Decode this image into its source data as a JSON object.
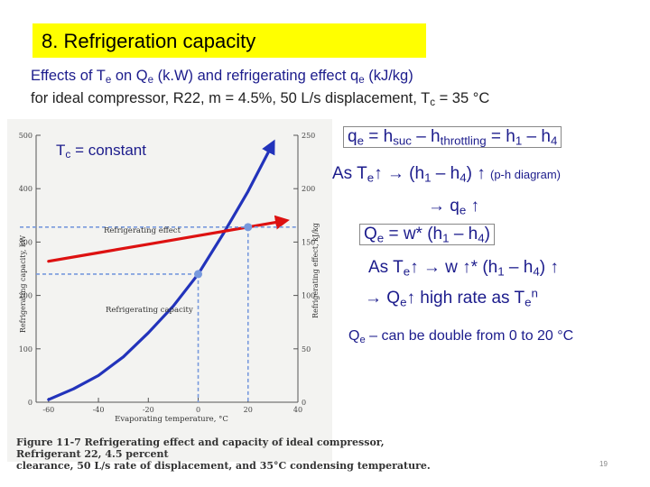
{
  "title": "8. Refrigeration capacity",
  "subtitle": {
    "line1": {
      "a": "Effects of T",
      "a_sub": "e",
      "b": " on Q",
      "b_sub": "e",
      "c": " (k.W) and refrigerating effect q",
      "c_sub": "e",
      "d": " (kJ/kg)"
    },
    "line2": {
      "a": "for ideal compressor, R22, m = 4.5%, 50 L/s displacement, T",
      "a_sub": "c",
      "b": " = 35 °C"
    }
  },
  "tc_label": {
    "text": "T",
    "sub": "c",
    "rest": " = constant"
  },
  "equations": {
    "eq1": {
      "qe": "q",
      "qe_sub": "e",
      "mid": " = h",
      "suc": "suc",
      "minus": " – h",
      "thr": "throttling",
      "tail": " = h",
      "one": "1",
      "tail2": " – h",
      "four": "4"
    },
    "eq2": {
      "as": "As T",
      "sub": "e",
      "up": "↑",
      "arrow": "  → (h",
      "one": "1",
      "mid": " – h",
      "four": "4",
      "close": ") ↑ ",
      "note": "(p-h diagram)"
    },
    "eq3": {
      "arrow": "→ q",
      "sub": "e",
      "up": " ↑"
    },
    "eq4": {
      "q": "Q",
      "sub": "e",
      "rest": " = w* (h",
      "one": "1",
      "mid": " – h",
      "four": "4",
      "close": ")"
    },
    "eq5": {
      "as": "As T",
      "sub": "e",
      "up": "↑",
      "rest": "  → w ↑* (h",
      "one": "1",
      "mid": " – h",
      "four": "4",
      "close": ") ↑"
    },
    "eq6": {
      "arrow": "→ Q",
      "sub": "e",
      "rest": "↑  high rate as T",
      "sub2": "e",
      "sup": "n"
    },
    "eq7": {
      "q": "Q",
      "sub": "e",
      "rest": " – can be double from 0 to 20 °C"
    }
  },
  "figure_caption": {
    "line1": "Figure 11-7  Refrigerating effect and capacity of ideal compressor, Refrigerant 22, 4.5 percent",
    "line2": "clearance, 50 L/s rate of displacement, and 35°C condensing temperature."
  },
  "page_number": "19",
  "colors": {
    "capacity_curve": "#2233bb",
    "effect_line": "#dd1111",
    "marker": "#7799dd",
    "title_bg": "#ffff00",
    "text_blue": "#1c1c8c"
  },
  "chart_data": {
    "type": "line",
    "xlabel": "Evaporating temperature, °C",
    "ylabel_left": "Refrigerating capacity, kW",
    "ylabel_right": "Refrigerating effect, kJ/kg",
    "x_ticks": [
      -60,
      -40,
      -20,
      0,
      20,
      40
    ],
    "y_left_ticks": [
      0,
      100,
      200,
      300,
      400,
      500
    ],
    "y_right_ticks": [
      0,
      50,
      100,
      150,
      200,
      250
    ],
    "xlim": [
      -65,
      40
    ],
    "ylim_left": [
      0,
      500
    ],
    "ylim_right": [
      0,
      250
    ],
    "series": [
      {
        "name": "Refrigerating capacity",
        "axis": "left",
        "x": [
          -60,
          -50,
          -40,
          -30,
          -20,
          -10,
          0,
          10,
          20,
          30
        ],
        "y": [
          5,
          25,
          50,
          85,
          130,
          180,
          240,
          315,
          395,
          485
        ]
      },
      {
        "name": "Refrigerating effect",
        "axis": "right",
        "x": [
          -60,
          -40,
          -20,
          0,
          20,
          35
        ],
        "y": [
          132,
          140,
          148,
          156,
          164,
          170
        ]
      }
    ],
    "markers": [
      {
        "series": "Refrigerating capacity",
        "x": 0,
        "y": 240
      },
      {
        "series": "Refrigerating effect",
        "x": 20,
        "y": 164
      }
    ],
    "grid": false
  }
}
